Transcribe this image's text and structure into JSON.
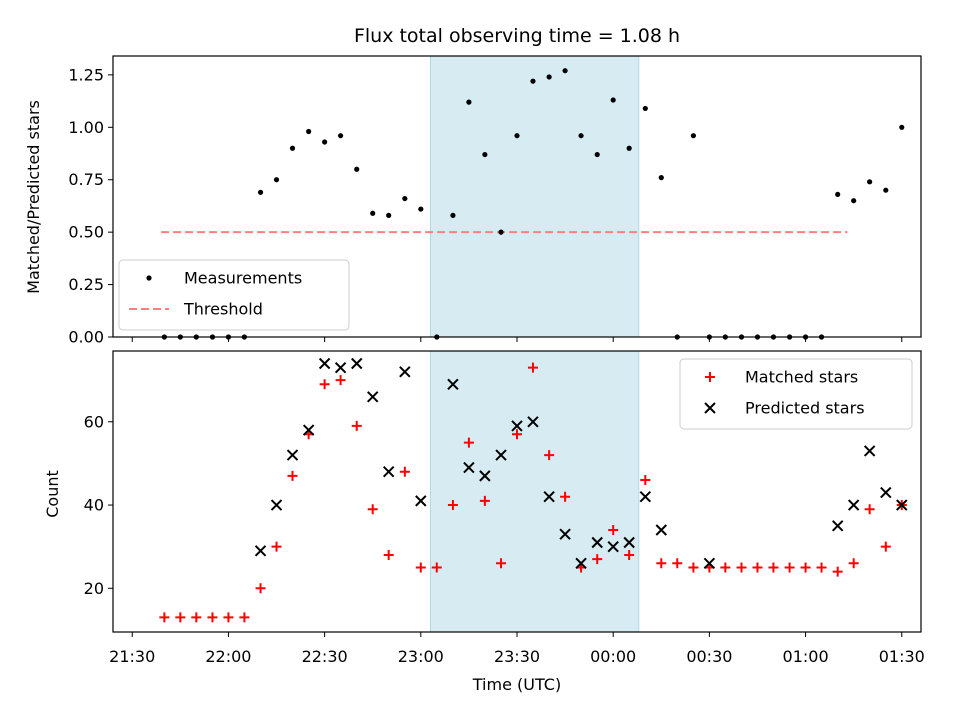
{
  "chart_data": [
    {
      "type": "scatter",
      "panel": "top",
      "title": "Flux total observing time = 1.08 h",
      "ylabel": "Matched/Predicted stars",
      "ylim": [
        0,
        1.34
      ],
      "yticks": [
        0,
        0.25,
        0.5,
        0.75,
        1.0,
        1.25
      ],
      "ytick_labels": [
        "0.00",
        "0.25",
        "0.50",
        "0.75",
        "1.00",
        "1.25"
      ],
      "highlight_span": {
        "start": 23.05,
        "end": 24.133,
        "color": "#add8e6"
      },
      "legend": {
        "position": "lower left",
        "entries": [
          {
            "label": "Measurements",
            "marker": "dot",
            "color": "#000000"
          },
          {
            "label": "Threshold",
            "marker": "dashed-line",
            "color": "#ff7f7f"
          }
        ]
      },
      "threshold": {
        "name": "Threshold",
        "y": 0.5,
        "x_range": [
          21.65,
          25.217
        ],
        "color": "#ff7f7f"
      },
      "series": [
        {
          "name": "Measurements",
          "color": "#000000",
          "points": [
            [
              21.667,
              0
            ],
            [
              21.75,
              0
            ],
            [
              21.833,
              0
            ],
            [
              21.917,
              0
            ],
            [
              22.0,
              0
            ],
            [
              22.083,
              0
            ],
            [
              22.167,
              0.69
            ],
            [
              22.25,
              0.75
            ],
            [
              22.333,
              0.9
            ],
            [
              22.417,
              0.98
            ],
            [
              22.5,
              0.93
            ],
            [
              22.583,
              0.96
            ],
            [
              22.667,
              0.8
            ],
            [
              22.75,
              0.59
            ],
            [
              22.833,
              0.58
            ],
            [
              22.917,
              0.66
            ],
            [
              23.0,
              0.61
            ],
            [
              23.083,
              0
            ],
            [
              23.167,
              0.58
            ],
            [
              23.25,
              1.12
            ],
            [
              23.333,
              0.87
            ],
            [
              23.417,
              0.5
            ],
            [
              23.5,
              0.96
            ],
            [
              23.583,
              1.22
            ],
            [
              23.667,
              1.24
            ],
            [
              23.75,
              1.27
            ],
            [
              23.833,
              0.96
            ],
            [
              23.917,
              0.87
            ],
            [
              24.0,
              1.13
            ],
            [
              24.083,
              0.9
            ],
            [
              24.167,
              1.09
            ],
            [
              24.25,
              0.76
            ],
            [
              24.333,
              0
            ],
            [
              24.417,
              0.96
            ],
            [
              24.5,
              0
            ],
            [
              24.583,
              0
            ],
            [
              24.667,
              0
            ],
            [
              24.75,
              0
            ],
            [
              24.833,
              0
            ],
            [
              24.917,
              0
            ],
            [
              25.0,
              0
            ],
            [
              25.083,
              0
            ],
            [
              25.167,
              0.68
            ],
            [
              25.25,
              0.65
            ],
            [
              25.333,
              0.74
            ],
            [
              25.417,
              0.7
            ],
            [
              25.5,
              1.0
            ]
          ]
        }
      ]
    },
    {
      "type": "scatter",
      "panel": "bottom",
      "xlabel": "Time (UTC)",
      "ylabel": "Count",
      "ylim": [
        9.5,
        77
      ],
      "yticks": [
        20,
        40,
        60
      ],
      "ytick_labels": [
        "20",
        "40",
        "60"
      ],
      "xticks": [
        21.5,
        22.0,
        22.5,
        23.0,
        23.5,
        24.0,
        24.5,
        25.0,
        25.5
      ],
      "xtick_labels": [
        "21:30",
        "22:00",
        "22:30",
        "23:00",
        "23:30",
        "00:00",
        "00:30",
        "01:00",
        "01:30"
      ],
      "highlight_span": {
        "start": 23.05,
        "end": 24.133,
        "color": "#add8e6"
      },
      "legend": {
        "position": "upper right",
        "entries": [
          {
            "label": "Matched stars",
            "marker": "plus",
            "color": "#ff0000"
          },
          {
            "label": "Predicted stars",
            "marker": "x",
            "color": "#000000"
          }
        ]
      },
      "series": [
        {
          "name": "Matched stars",
          "marker": "plus",
          "color": "#ff0000",
          "points": [
            [
              21.667,
              13
            ],
            [
              21.75,
              13
            ],
            [
              21.833,
              13
            ],
            [
              21.917,
              13
            ],
            [
              22.0,
              13
            ],
            [
              22.083,
              13
            ],
            [
              22.167,
              20
            ],
            [
              22.25,
              30
            ],
            [
              22.333,
              47
            ],
            [
              22.417,
              57
            ],
            [
              22.5,
              69
            ],
            [
              22.583,
              70
            ],
            [
              22.667,
              59
            ],
            [
              22.75,
              39
            ],
            [
              22.833,
              28
            ],
            [
              22.917,
              48
            ],
            [
              23.0,
              25
            ],
            [
              23.083,
              25
            ],
            [
              23.167,
              40
            ],
            [
              23.25,
              55
            ],
            [
              23.333,
              41
            ],
            [
              23.417,
              26
            ],
            [
              23.5,
              57
            ],
            [
              23.583,
              73
            ],
            [
              23.667,
              52
            ],
            [
              23.75,
              42
            ],
            [
              23.833,
              25
            ],
            [
              23.917,
              27
            ],
            [
              24.0,
              34
            ],
            [
              24.083,
              28
            ],
            [
              24.167,
              46
            ],
            [
              24.25,
              26
            ],
            [
              24.333,
              26
            ],
            [
              24.417,
              25
            ],
            [
              24.5,
              25
            ],
            [
              24.583,
              25
            ],
            [
              24.667,
              25
            ],
            [
              24.75,
              25
            ],
            [
              24.833,
              25
            ],
            [
              24.917,
              25
            ],
            [
              25.0,
              25
            ],
            [
              25.083,
              25
            ],
            [
              25.167,
              24
            ],
            [
              25.25,
              26
            ],
            [
              25.333,
              39
            ],
            [
              25.417,
              30
            ],
            [
              25.5,
              40
            ]
          ]
        },
        {
          "name": "Predicted stars",
          "marker": "x",
          "color": "#000000",
          "points": [
            [
              22.167,
              29
            ],
            [
              22.25,
              40
            ],
            [
              22.333,
              52
            ],
            [
              22.417,
              58
            ],
            [
              22.5,
              74
            ],
            [
              22.583,
              73
            ],
            [
              22.667,
              74
            ],
            [
              22.75,
              66
            ],
            [
              22.833,
              48
            ],
            [
              22.917,
              72
            ],
            [
              23.0,
              41
            ],
            [
              23.167,
              69
            ],
            [
              23.25,
              49
            ],
            [
              23.333,
              47
            ],
            [
              23.417,
              52
            ],
            [
              23.5,
              59
            ],
            [
              23.583,
              60
            ],
            [
              23.667,
              42
            ],
            [
              23.75,
              33
            ],
            [
              23.833,
              26
            ],
            [
              23.917,
              31
            ],
            [
              24.0,
              30
            ],
            [
              24.083,
              31
            ],
            [
              24.167,
              42
            ],
            [
              24.25,
              34
            ],
            [
              24.5,
              26
            ],
            [
              25.167,
              35
            ],
            [
              25.25,
              40
            ],
            [
              25.333,
              53
            ],
            [
              25.417,
              43
            ],
            [
              25.5,
              40
            ]
          ]
        }
      ]
    }
  ]
}
